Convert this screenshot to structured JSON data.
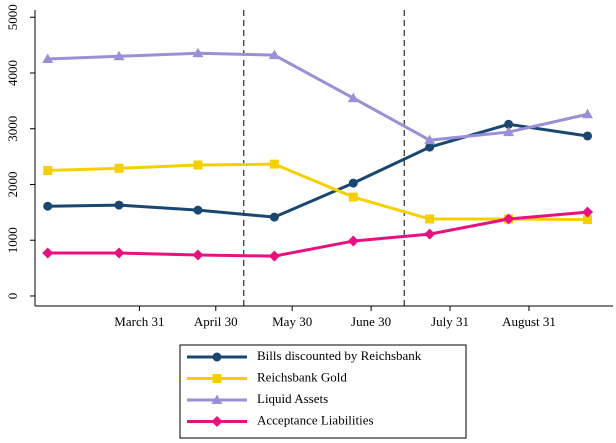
{
  "chart_data": {
    "type": "line",
    "x": [
      54,
      82,
      113,
      143,
      174,
      204,
      235,
      266
    ],
    "xlim": [
      49,
      276
    ],
    "xticks": [
      {
        "value": 90,
        "label": "March 31"
      },
      {
        "value": 120,
        "label": "April 30"
      },
      {
        "value": 150,
        "label": "May 30"
      },
      {
        "value": 181,
        "label": "June 30"
      },
      {
        "value": 212,
        "label": "July 31"
      },
      {
        "value": 243,
        "label": "August 31"
      }
    ],
    "ylim": [
      -180,
      5130
    ],
    "yticks": [
      0,
      1000,
      2000,
      3000,
      4000,
      5000
    ],
    "vlines": [
      131,
      194
    ],
    "series": [
      {
        "name": "Bills discounted by Reichsbank",
        "color": "#1a476f",
        "marker": "circle",
        "values": [
          1610,
          1630,
          1540,
          1415,
          2025,
          2670,
          3080,
          2870
        ]
      },
      {
        "name": "Reichsbank Gold",
        "color": "#f5d000",
        "marker": "square",
        "values": [
          2250,
          2290,
          2350,
          2365,
          1775,
          1380,
          1380,
          1370
        ]
      },
      {
        "name": "Liquid Assets",
        "color": "#9b8fd8",
        "marker": "triangle",
        "values": [
          4250,
          4300,
          4355,
          4320,
          3550,
          2795,
          2940,
          3260
        ]
      },
      {
        "name": "Acceptance Liabilities",
        "color": "#e8117f",
        "marker": "diamond",
        "values": [
          770,
          770,
          735,
          715,
          985,
          1110,
          1380,
          1505
        ]
      }
    ],
    "legend": "bottom"
  }
}
